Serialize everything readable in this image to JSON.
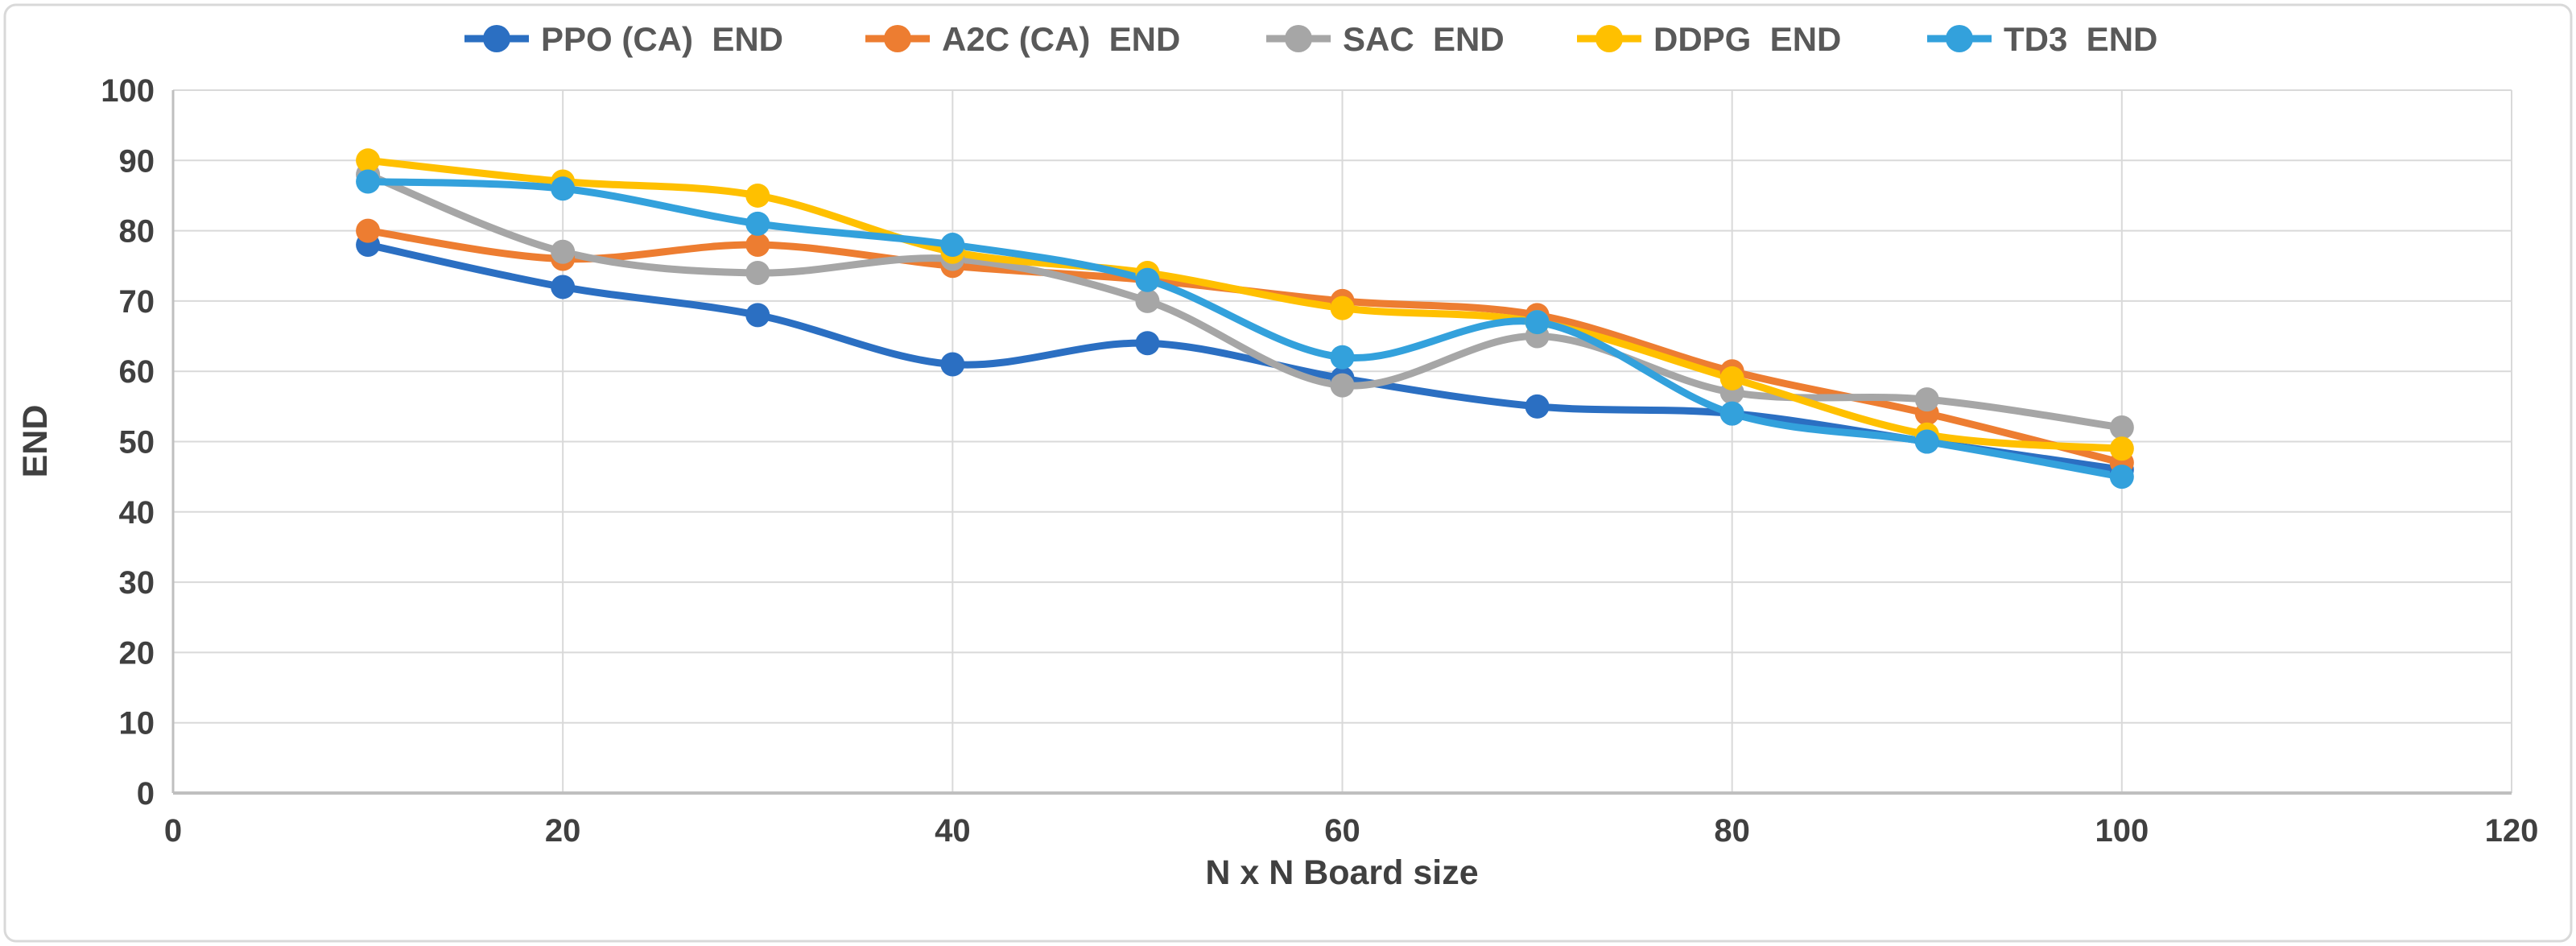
{
  "figure": {
    "background": "#FFFFFF",
    "border_color": "#D9D9D9",
    "grid_color": "#D9D9D9",
    "axis_color": "#BFBFBF",
    "tick_text_color": "#404040",
    "legend_text_color": "#595959"
  },
  "chart_data": {
    "type": "line",
    "title": "",
    "xlabel": "N x N Board size",
    "ylabel": "END",
    "xlim": [
      0,
      120
    ],
    "ylim": [
      0,
      100
    ],
    "x_ticks": [
      0,
      20,
      40,
      60,
      80,
      100,
      120
    ],
    "y_ticks": [
      0,
      10,
      20,
      30,
      40,
      50,
      60,
      70,
      80,
      90,
      100
    ],
    "grid": true,
    "smoothed_lines": true,
    "legend_position": "top",
    "marker": "circle",
    "x": [
      10,
      20,
      30,
      40,
      50,
      60,
      70,
      80,
      90,
      100
    ],
    "series": [
      {
        "name": "PPO (CA) END",
        "legend_label": "PPO (CA)  END",
        "color": "#2B6FC2",
        "values": [
          78,
          72,
          68,
          61,
          64,
          59,
          55,
          54,
          50,
          46
        ]
      },
      {
        "name": "A2C (CA) END",
        "legend_label": "A2C (CA)  END",
        "color": "#ED7D31",
        "values": [
          80,
          76,
          78,
          75,
          73,
          70,
          68,
          60,
          54,
          47
        ]
      },
      {
        "name": "SAC END",
        "legend_label": "SAC  END",
        "color": "#A6A6A6",
        "values": [
          88,
          77,
          74,
          76,
          70,
          58,
          65,
          57,
          56,
          52
        ]
      },
      {
        "name": "DDPG END",
        "legend_label": "DDPG  END",
        "color": "#FFC000",
        "values": [
          90,
          87,
          85,
          77,
          74,
          69,
          67,
          59,
          51,
          49
        ]
      },
      {
        "name": "TD3 END",
        "legend_label": "TD3  END",
        "color": "#33A1DC",
        "values": [
          87,
          86,
          81,
          78,
          73,
          62,
          67,
          54,
          50,
          45
        ]
      }
    ]
  }
}
